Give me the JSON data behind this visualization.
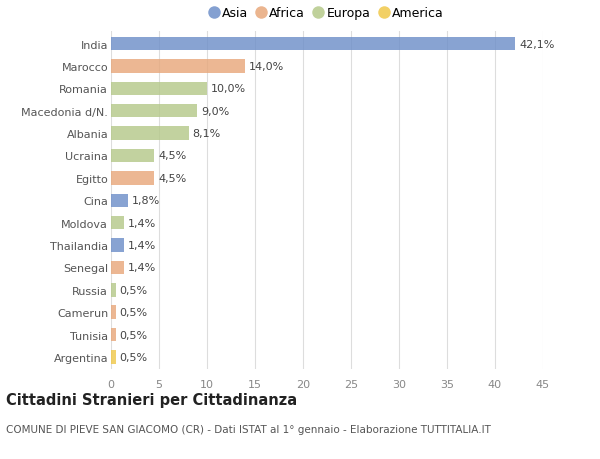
{
  "categories": [
    "India",
    "Marocco",
    "Romania",
    "Macedonia d/N.",
    "Albania",
    "Ucraina",
    "Egitto",
    "Cina",
    "Moldova",
    "Thailandia",
    "Senegal",
    "Russia",
    "Camerun",
    "Tunisia",
    "Argentina"
  ],
  "values": [
    42.1,
    14.0,
    10.0,
    9.0,
    8.1,
    4.5,
    4.5,
    1.8,
    1.4,
    1.4,
    1.4,
    0.5,
    0.5,
    0.5,
    0.5
  ],
  "labels": [
    "42,1%",
    "14,0%",
    "10,0%",
    "9,0%",
    "8,1%",
    "4,5%",
    "4,5%",
    "1,8%",
    "1,4%",
    "1,4%",
    "1,4%",
    "0,5%",
    "0,5%",
    "0,5%",
    "0,5%"
  ],
  "continents": [
    "Asia",
    "Africa",
    "Europa",
    "Europa",
    "Europa",
    "Europa",
    "Africa",
    "Asia",
    "Europa",
    "Asia",
    "Africa",
    "Europa",
    "Africa",
    "Africa",
    "America"
  ],
  "continent_colors": {
    "Asia": "#6e8fc9",
    "Africa": "#e8a87c",
    "Europa": "#b5c98a",
    "America": "#f0c84a"
  },
  "legend_order": [
    "Asia",
    "Africa",
    "Europa",
    "America"
  ],
  "title": "Cittadini Stranieri per Cittadinanza",
  "subtitle": "COMUNE DI PIEVE SAN GIACOMO (CR) - Dati ISTAT al 1° gennaio - Elaborazione TUTTITALIA.IT",
  "xlim": [
    0,
    45
  ],
  "xticks": [
    0,
    5,
    10,
    15,
    20,
    25,
    30,
    35,
    40,
    45
  ],
  "bg_color": "#ffffff",
  "grid_color": "#dddddd",
  "bar_height": 0.6,
  "label_fontsize": 8.0,
  "tick_fontsize": 8.0,
  "title_fontsize": 10.5,
  "subtitle_fontsize": 7.5
}
